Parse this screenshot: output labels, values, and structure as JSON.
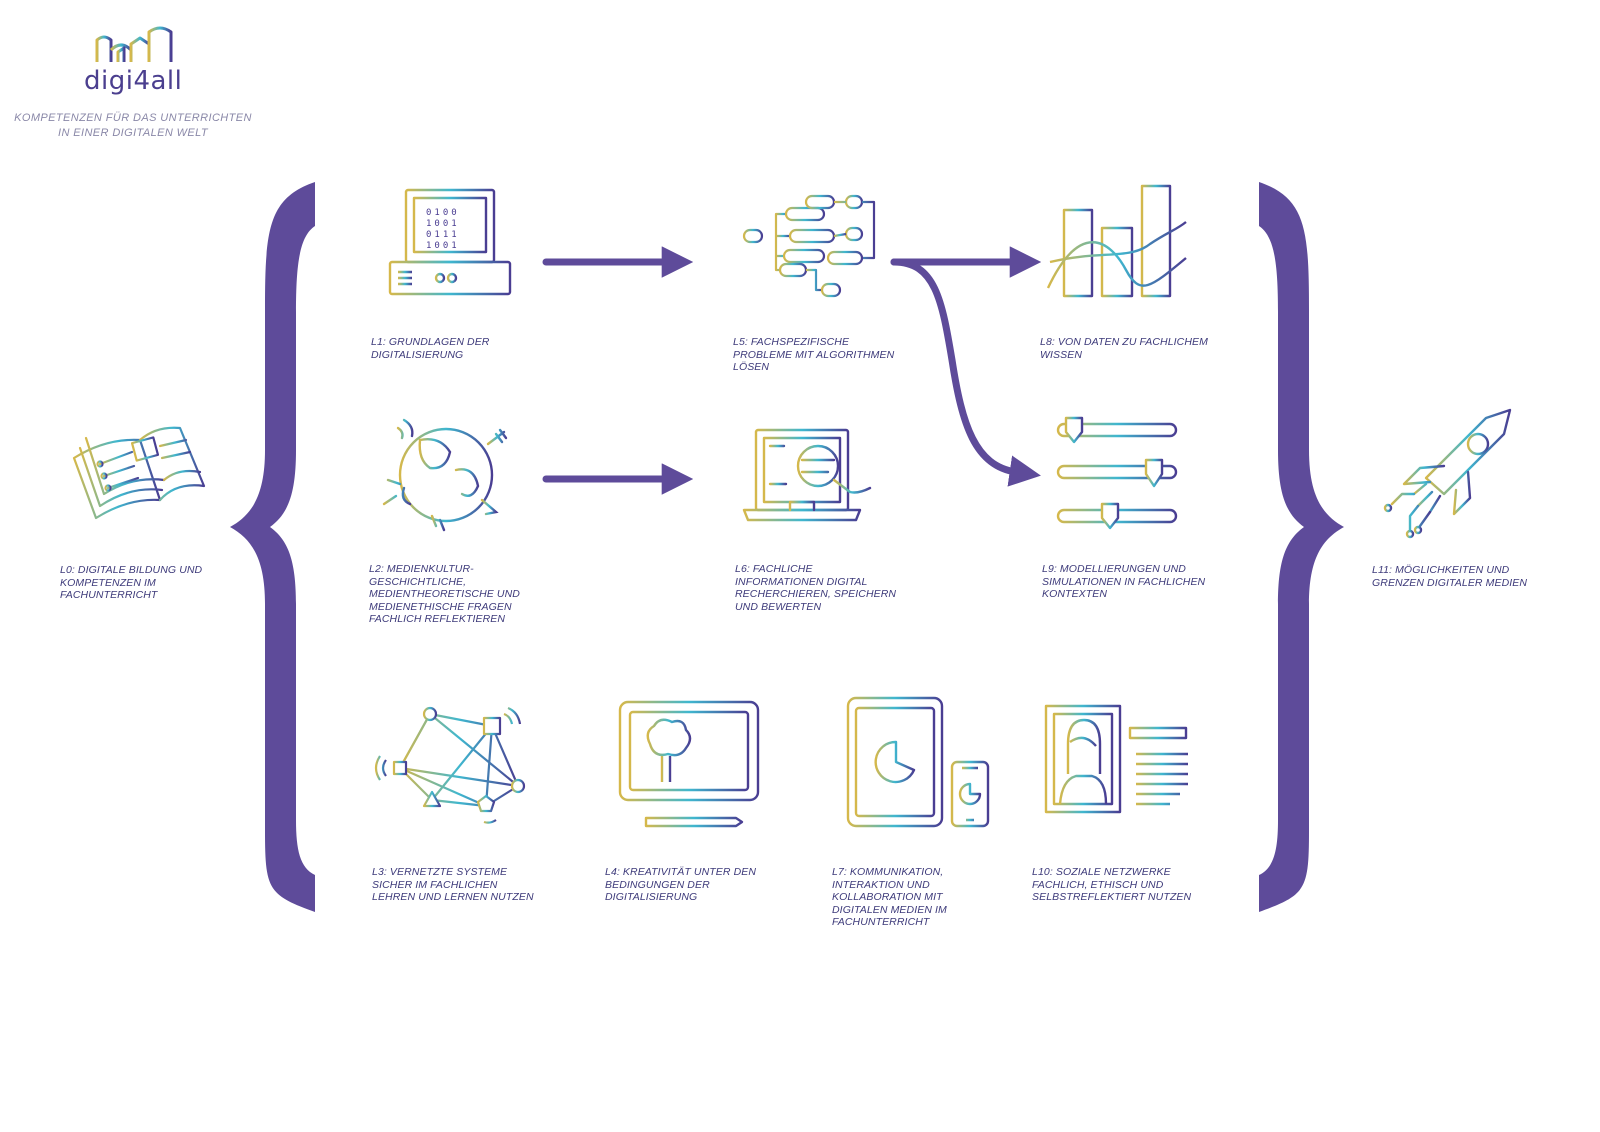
{
  "brand": {
    "name": "digi4all",
    "tagline": "KOMPETENZEN FÜR DAS UNTERRICHTEN\nIN EINER DIGITALEN WELT"
  },
  "colors": {
    "brace": "#5e4b9a",
    "arrow": "#5e4b9a",
    "gradient_start": "#d6b84a",
    "gradient_mid": "#3fb7cf",
    "gradient_end": "#4a3d92",
    "label": "#3d3a7a"
  },
  "competencies": [
    {
      "id": "L0",
      "icon": "book-circuit-icon",
      "label": "L0: DIGITALE BILDUNG UND\nKOMPETENZEN IM\nFACHUNTERRICHT"
    },
    {
      "id": "L1",
      "icon": "binary-computer-icon",
      "label": "L1: GRUNDLAGEN DER\nDIGITALISIERUNG"
    },
    {
      "id": "L2",
      "icon": "globe-media-icon",
      "label": "L2: MEDIENKULTUR-\nGESCHICHTLICHE,\nMEDIENTHEORETISCHE UND\nMEDIENETHISCHE FRAGEN\nFACHLICH REFLEKTIEREN"
    },
    {
      "id": "L3",
      "icon": "network-nodes-icon",
      "label": "L3: VERNETZTE SYSTEME\nSICHER IM FACHLICHEN\nLEHREN UND LERNEN NUTZEN"
    },
    {
      "id": "L4",
      "icon": "tablet-stylus-icon",
      "label": "L4: KREATIVITÄT UNTER DEN\nBEDINGUNGEN DER\nDIGITALISIERUNG"
    },
    {
      "id": "L5",
      "icon": "algorithm-flow-icon",
      "label": "L5: FACHSPEZIFISCHE\nPROBLEME MIT ALGORITHMEN\nLÖSEN"
    },
    {
      "id": "L6",
      "icon": "laptop-search-icon",
      "label": "L6: FACHLICHE\nINFORMATIONEN DIGITAL\nRECHERCHIEREN, SPEICHERN\nUND BEWERTEN"
    },
    {
      "id": "L7",
      "icon": "tablet-phone-icon",
      "label": "L7: KOMMUNIKATION,\nINTERAKTION UND\nKOLLABORATION MIT\nDIGITALEN MEDIEN IM\nFACHUNTERRICHT"
    },
    {
      "id": "L8",
      "icon": "bar-chart-icon",
      "label": "L8: VON DATEN ZU FACHLICHEM\nWISSEN"
    },
    {
      "id": "L9",
      "icon": "sliders-icon",
      "label": "L9: MODELLIERUNGEN UND\nSIMULATIONEN IN FACHLICHEN\nKONTEXTEN"
    },
    {
      "id": "L10",
      "icon": "social-profile-icon",
      "label": "L10: SOZIALE NETZWERKE\nFACHLICH, ETHISCH UND\nSELBSTREFLEKTIERT NUTZEN"
    },
    {
      "id": "L11",
      "icon": "rocket-icon",
      "label": "L11: MÖGLICHKEITEN UND\nGRENZEN DIGITALER MEDIEN"
    }
  ],
  "flows": [
    {
      "from": "L1",
      "to": "L5"
    },
    {
      "from": "L2",
      "to": "L6"
    },
    {
      "from": "L5",
      "to": "L8"
    },
    {
      "from": "L5",
      "to": "L9"
    }
  ]
}
